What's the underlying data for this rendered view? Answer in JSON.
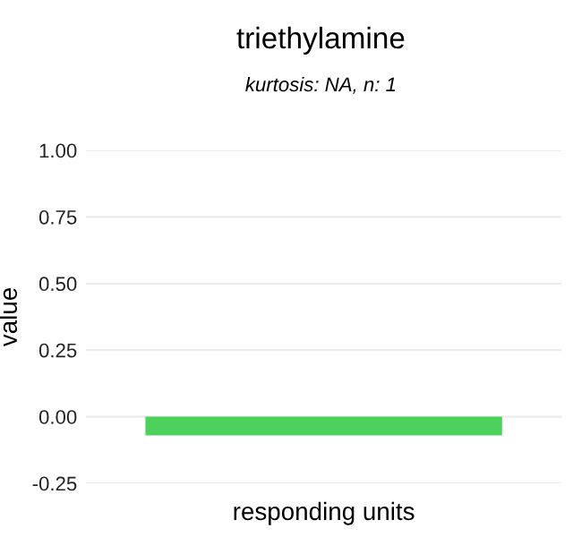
{
  "chart_data": {
    "type": "bar",
    "title": "triethylamine",
    "subtitle": "kurtosis: NA, n: 1",
    "xlabel": "responding units",
    "ylabel": "value",
    "categories": [
      null
    ],
    "values": [
      -0.07
    ],
    "color": "#4cd15c",
    "ylim": [
      -0.25,
      1.0
    ],
    "yticks": [
      {
        "value": -0.25,
        "label": "-0.25"
      },
      {
        "value": 0,
        "label": "0.00"
      },
      {
        "value": 0.25,
        "label": "0.25"
      },
      {
        "value": 0.5,
        "label": "0.50"
      },
      {
        "value": 0.75,
        "label": "0.75"
      },
      {
        "value": 1,
        "label": "1.00"
      }
    ],
    "grid": "y"
  }
}
